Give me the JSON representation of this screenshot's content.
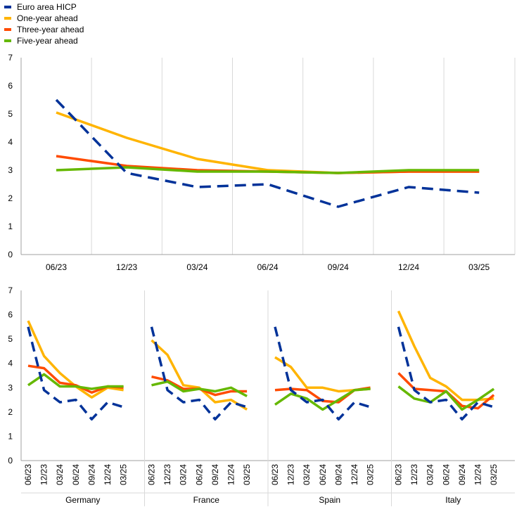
{
  "colors": {
    "hicp": "#003299",
    "one_year": "#ffb400",
    "three_year": "#ff4b00",
    "five_year": "#65b800",
    "grid": "#d9d9d9",
    "axis": "#a0a0a0",
    "text": "#000000"
  },
  "chart_data": [
    {
      "type": "line",
      "title": "",
      "xlabel": "",
      "ylabel": "",
      "ylim": [
        0,
        7
      ],
      "yticks": [
        "0",
        "1",
        "2",
        "3",
        "4",
        "5",
        "6",
        "7"
      ],
      "grid": "vertical",
      "legend": "top-left",
      "x": [
        "06/23",
        "12/23",
        "03/24",
        "06/24",
        "09/24",
        "12/24",
        "03/25"
      ],
      "series": [
        {
          "name": "Euro area HICP",
          "style": "dashed",
          "values": [
            5.5,
            2.9,
            2.4,
            2.5,
            1.7,
            2.4,
            2.2
          ]
        },
        {
          "name": "One-year ahead",
          "style": "solid",
          "values": [
            5.05,
            4.15,
            3.4,
            3.0,
            2.9,
            2.95,
            2.95
          ]
        },
        {
          "name": "Three-year ahead",
          "style": "solid",
          "values": [
            3.5,
            3.15,
            3.0,
            2.95,
            2.9,
            2.95,
            2.95
          ]
        },
        {
          "name": "Five-year ahead",
          "style": "solid",
          "values": [
            3.0,
            3.1,
            2.95,
            2.95,
            2.9,
            3.0,
            3.0
          ]
        }
      ]
    },
    {
      "type": "line",
      "title": "",
      "ylim": [
        0,
        7
      ],
      "yticks": [
        "0",
        "1",
        "2",
        "3",
        "4",
        "5",
        "6",
        "7"
      ],
      "x": [
        "06/23",
        "12/23",
        "03/24",
        "06/24",
        "09/24",
        "12/24",
        "03/25"
      ],
      "panels": [
        {
          "label": "Germany",
          "series": [
            {
              "name": "Euro area HICP",
              "values": [
                5.5,
                2.9,
                2.4,
                2.5,
                1.7,
                2.4,
                2.2
              ]
            },
            {
              "name": "One-year ahead",
              "values": [
                5.75,
                4.3,
                3.6,
                3.05,
                2.6,
                3.0,
                2.9
              ]
            },
            {
              "name": "Three-year ahead",
              "values": [
                3.9,
                3.8,
                3.2,
                3.1,
                2.8,
                3.05,
                3.0
              ]
            },
            {
              "name": "Five-year ahead",
              "values": [
                3.1,
                3.55,
                3.05,
                3.05,
                2.95,
                3.05,
                3.05
              ]
            }
          ]
        },
        {
          "label": "France",
          "series": [
            {
              "name": "Euro area HICP",
              "values": [
                5.5,
                2.9,
                2.4,
                2.5,
                1.7,
                2.4,
                2.2
              ]
            },
            {
              "name": "One-year ahead",
              "values": [
                4.95,
                4.35,
                3.1,
                3.0,
                2.4,
                2.5,
                2.1
              ]
            },
            {
              "name": "Three-year ahead",
              "values": [
                3.45,
                3.3,
                2.95,
                2.95,
                2.7,
                2.85,
                2.85
              ]
            },
            {
              "name": "Five-year ahead",
              "values": [
                3.1,
                3.25,
                2.85,
                2.95,
                2.85,
                3.0,
                2.65
              ]
            }
          ]
        },
        {
          "label": "Spain",
          "series": [
            {
              "name": "Euro area HICP",
              "values": [
                5.5,
                2.9,
                2.4,
                2.5,
                1.7,
                2.4,
                2.2
              ]
            },
            {
              "name": "One-year ahead",
              "values": [
                4.25,
                3.85,
                3.0,
                3.0,
                2.85,
                2.9,
                2.95
              ]
            },
            {
              "name": "Three-year ahead",
              "values": [
                2.9,
                2.95,
                2.9,
                2.45,
                2.4,
                2.9,
                3.0
              ]
            },
            {
              "name": "Five-year ahead",
              "values": [
                2.3,
                2.75,
                2.55,
                2.1,
                2.5,
                2.9,
                2.95
              ]
            }
          ]
        },
        {
          "label": "Italy",
          "series": [
            {
              "name": "Euro area HICP",
              "values": [
                5.5,
                2.9,
                2.4,
                2.5,
                1.7,
                2.4,
                2.2
              ]
            },
            {
              "name": "One-year ahead",
              "values": [
                6.15,
                4.7,
                3.4,
                3.05,
                2.5,
                2.5,
                2.55
              ]
            },
            {
              "name": "Three-year ahead",
              "values": [
                3.6,
                2.95,
                2.9,
                2.85,
                2.25,
                2.15,
                2.7
              ]
            },
            {
              "name": "Five-year ahead",
              "values": [
                3.05,
                2.55,
                2.4,
                2.85,
                2.1,
                2.5,
                2.95
              ]
            }
          ]
        }
      ]
    }
  ]
}
